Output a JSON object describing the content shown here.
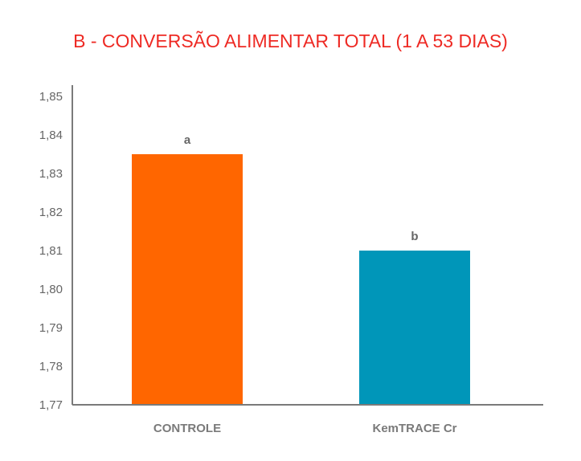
{
  "colors": {
    "title": "#ee2a24",
    "axis": "#7a7a7a",
    "text": "#666666"
  },
  "chart_data": {
    "type": "bar",
    "title": "B - CONVERSÃO ALIMENTAR TOTAL (1 A 53 DIAS)",
    "xlabel": "",
    "ylabel": "",
    "categories": [
      "CONTROLE",
      "KemTRACE Cr"
    ],
    "values": [
      1.835,
      1.81
    ],
    "bar_labels": [
      "a",
      "b"
    ],
    "bar_colors": [
      "#ff6600",
      "#0096b9"
    ],
    "ylim": [
      1.77,
      1.85
    ],
    "yticks": [
      "1,77",
      "1,78",
      "1,79",
      "1,80",
      "1,81",
      "1,82",
      "1,83",
      "1,84",
      "1,85"
    ],
    "grid": false,
    "legend": "none"
  }
}
